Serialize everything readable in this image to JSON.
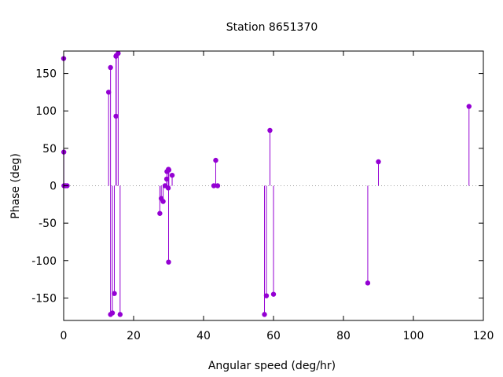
{
  "chart_data": {
    "type": "stem",
    "title": "Station 8651370",
    "xlabel": "Angular speed (deg/hr)",
    "ylabel": "Phase (deg)",
    "xlim": [
      0,
      120
    ],
    "ylim": [
      -180,
      180
    ],
    "xticks": [
      0,
      20,
      40,
      60,
      80,
      100,
      120
    ],
    "yticks": [
      -150,
      -100,
      -50,
      0,
      50,
      100,
      150
    ],
    "xtick_labels": [
      "0",
      "20",
      "40",
      "60",
      "80",
      "100",
      "120"
    ],
    "ytick_labels": [
      "-150",
      "-100",
      "-50",
      "0",
      "50",
      "100",
      "150"
    ],
    "zero_line": "dotted",
    "grid": false,
    "colors": {
      "series": "#9400d3",
      "axis": "#000000",
      "zero_line": "#a0a0a0"
    },
    "points": [
      {
        "x": 0.0,
        "y": 170
      },
      {
        "x": 0.04,
        "y": 45
      },
      {
        "x": 0.08,
        "y": 0
      },
      {
        "x": 0.5,
        "y": 0
      },
      {
        "x": 1.0,
        "y": 0
      },
      {
        "x": 12.85,
        "y": 125
      },
      {
        "x": 13.4,
        "y": -172
      },
      {
        "x": 13.4,
        "y": 158
      },
      {
        "x": 13.94,
        "y": -170
      },
      {
        "x": 14.5,
        "y": -144
      },
      {
        "x": 14.96,
        "y": 93
      },
      {
        "x": 14.96,
        "y": 173
      },
      {
        "x": 15.04,
        "y": 174
      },
      {
        "x": 15.59,
        "y": 177
      },
      {
        "x": 16.14,
        "y": -172
      },
      {
        "x": 27.5,
        "y": -37
      },
      {
        "x": 27.9,
        "y": -17
      },
      {
        "x": 28.44,
        "y": -21
      },
      {
        "x": 28.98,
        "y": 0
      },
      {
        "x": 29.46,
        "y": 9
      },
      {
        "x": 29.53,
        "y": 19
      },
      {
        "x": 29.9,
        "y": -3
      },
      {
        "x": 29.96,
        "y": 22
      },
      {
        "x": 30.0,
        "y": -102
      },
      {
        "x": 30.08,
        "y": 21
      },
      {
        "x": 31.02,
        "y": 14
      },
      {
        "x": 42.93,
        "y": 0
      },
      {
        "x": 43.48,
        "y": 34
      },
      {
        "x": 44.03,
        "y": 0
      },
      {
        "x": 57.42,
        "y": -172
      },
      {
        "x": 57.97,
        "y": -147
      },
      {
        "x": 58.98,
        "y": 74
      },
      {
        "x": 60.0,
        "y": -145
      },
      {
        "x": 86.95,
        "y": -130
      },
      {
        "x": 90.0,
        "y": 32
      },
      {
        "x": 115.9,
        "y": 106
      }
    ]
  }
}
